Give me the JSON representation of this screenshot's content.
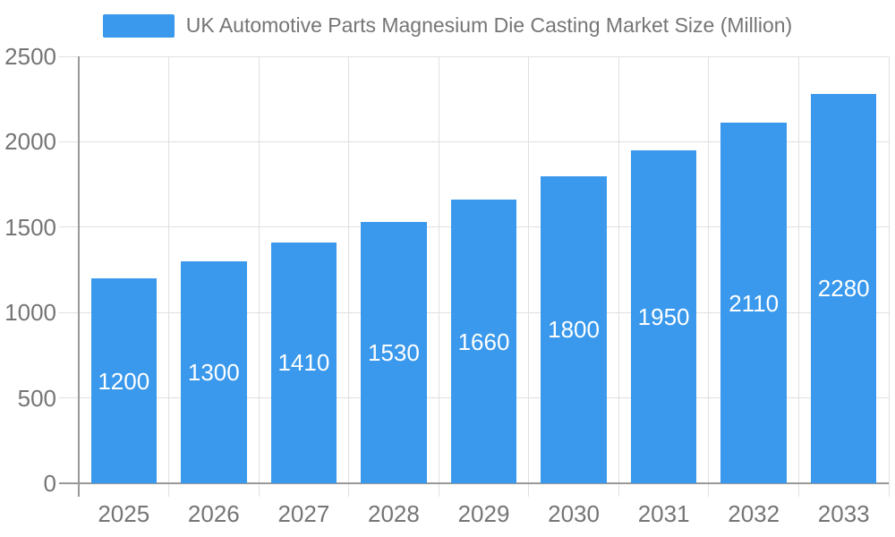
{
  "chart_data": {
    "type": "bar",
    "title": "UK Automotive Parts Magnesium Die Casting Market Size (Million)",
    "legend_position": "top",
    "categories": [
      "2025",
      "2026",
      "2027",
      "2028",
      "2029",
      "2030",
      "2031",
      "2032",
      "2033"
    ],
    "values": [
      1200,
      1300,
      1410,
      1530,
      1660,
      1800,
      1950,
      2110,
      2280
    ],
    "xlabel": "",
    "ylabel": "",
    "ylim": [
      0,
      2500
    ],
    "y_ticks": [
      0,
      500,
      1000,
      1500,
      2000,
      2500
    ],
    "grid": true,
    "colors": {
      "bar": "#3A99EC",
      "bar_label": "#FFFFFF",
      "axis": "#999999",
      "grid": "#E0E0E0",
      "text": "#757575"
    }
  }
}
